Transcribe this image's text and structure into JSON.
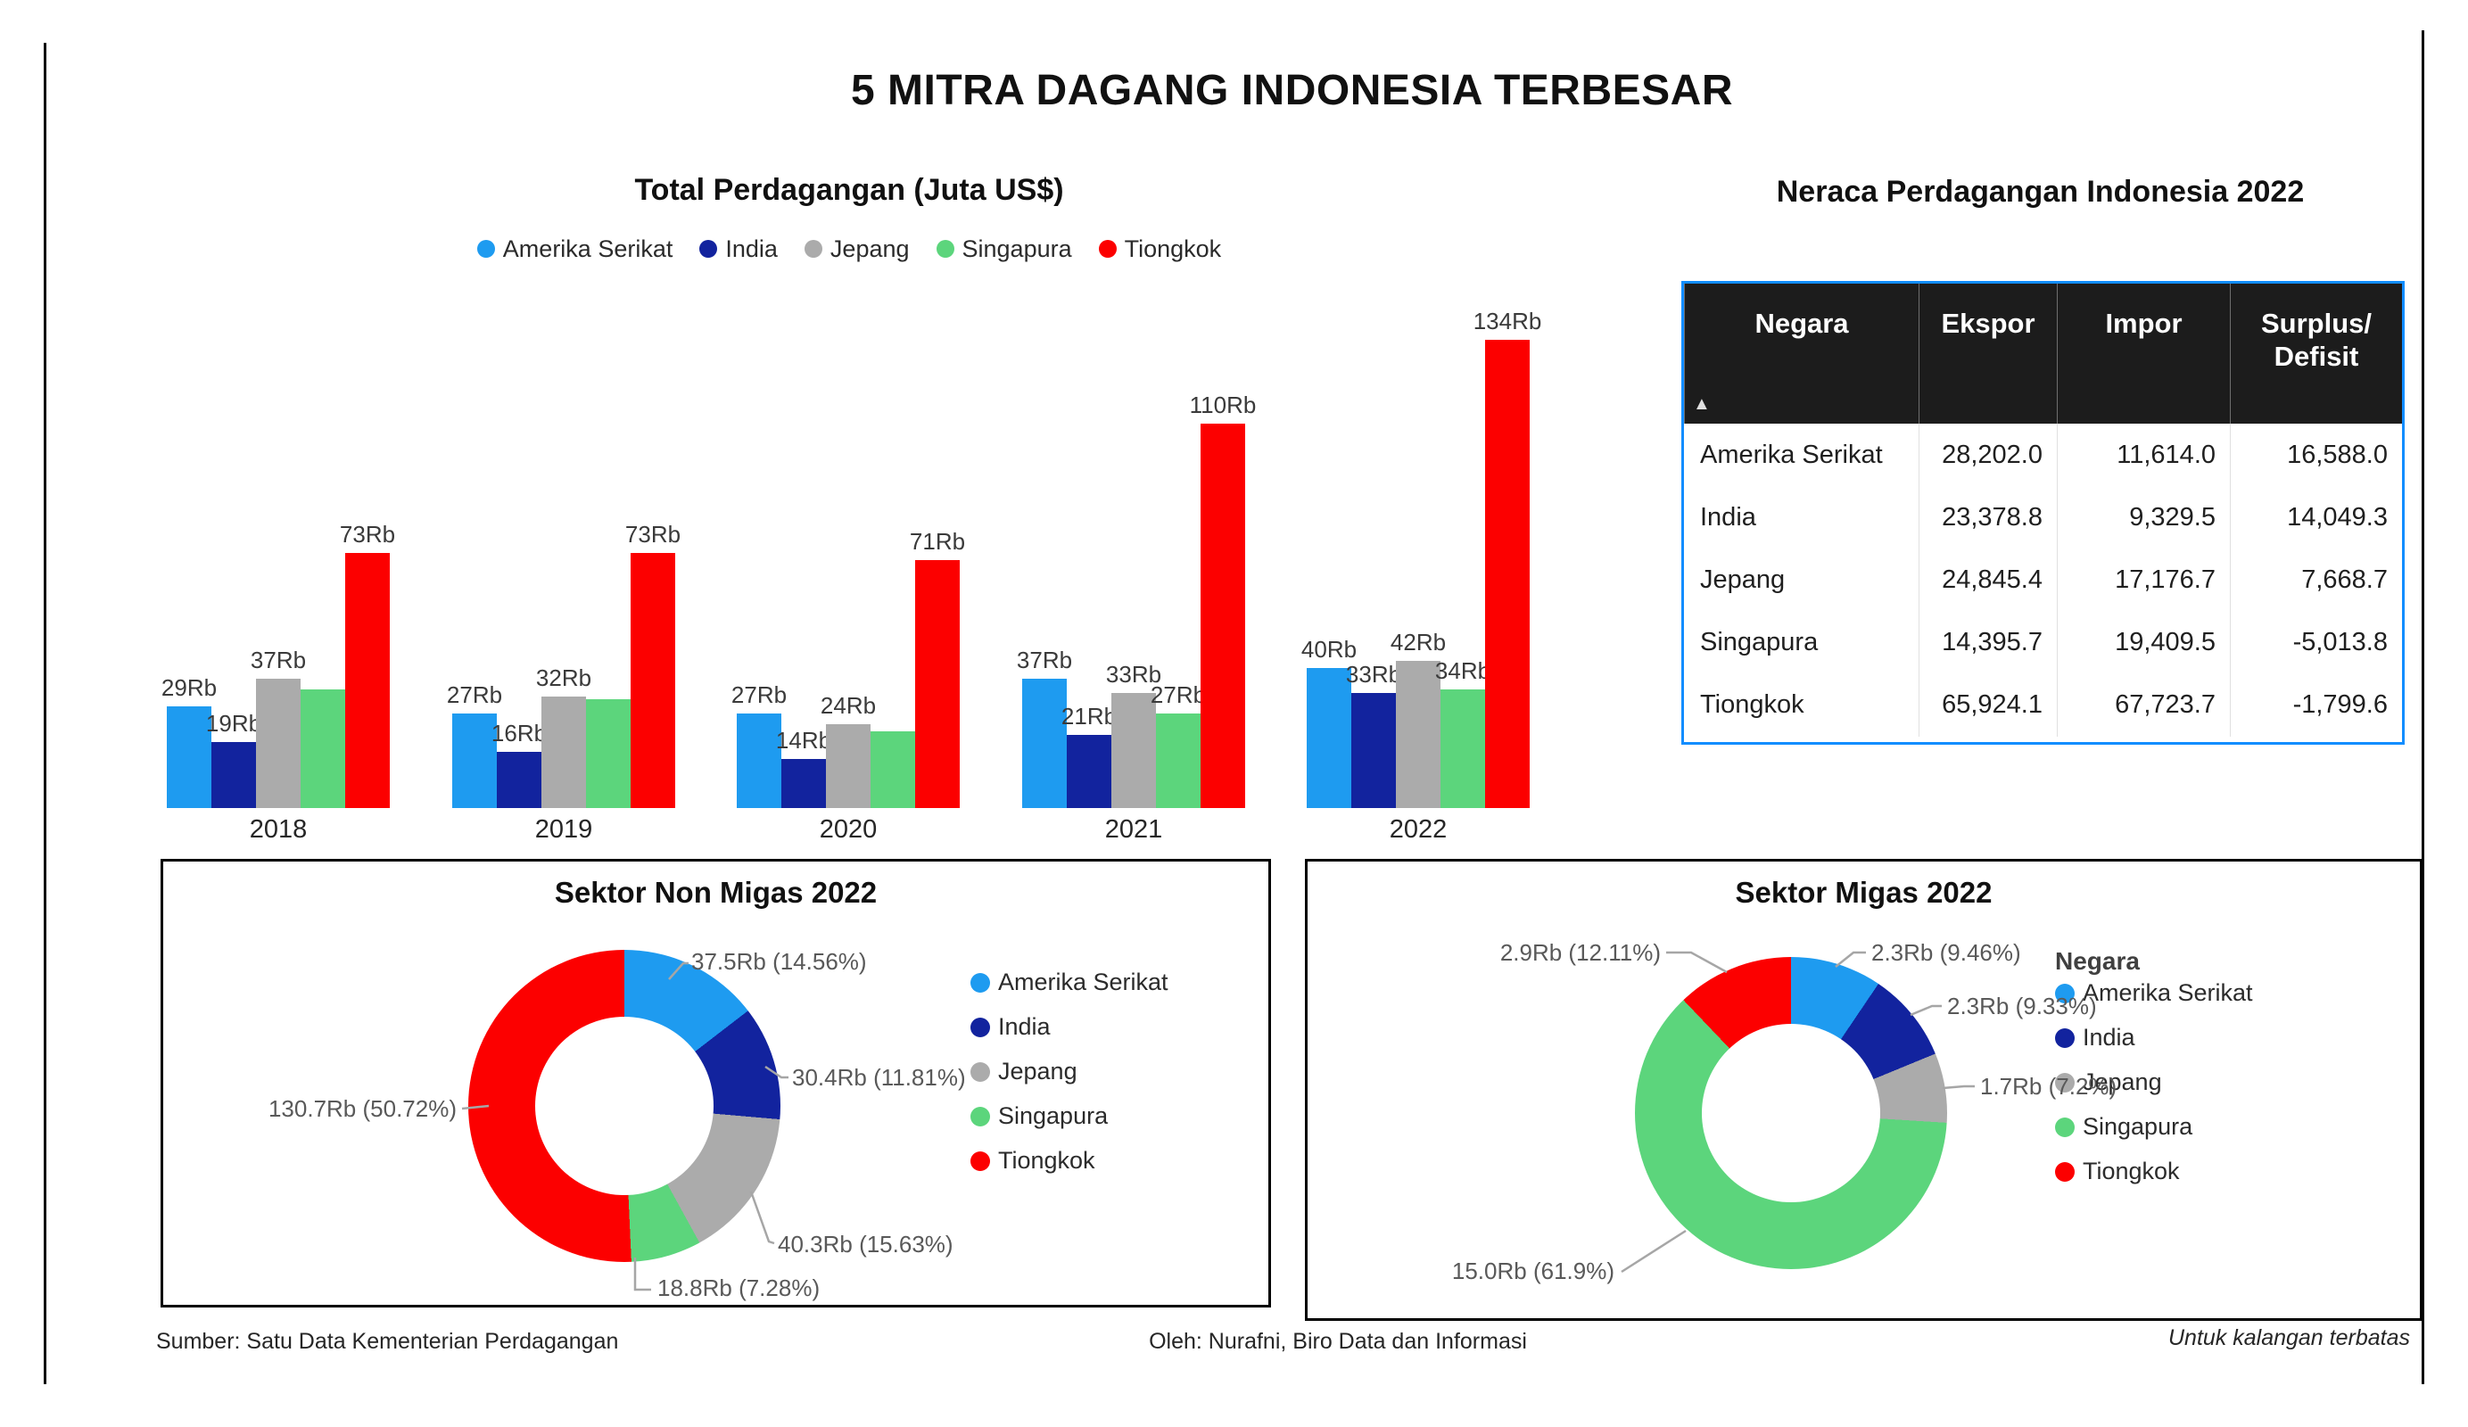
{
  "page": {
    "title": "5 MITRA DAGANG INDONESIA TERBESAR",
    "footer": {
      "source": "Sumber: Satu Data Kementerian Perdagangan",
      "author": "Oleh: Nurafni, Biro Data dan Informasi",
      "note": "Untuk kalangan terbatas"
    }
  },
  "series": [
    "Amerika Serikat",
    "India",
    "Jepang",
    "Singapura",
    "Tiongkok"
  ],
  "series_colors": [
    "#1E9BF0",
    "#12239E",
    "#ABABAB",
    "#5CD57C",
    "#FC0000"
  ],
  "legend_title": "Negara",
  "chart_data": [
    {
      "id": "total_perdagangan",
      "type": "bar",
      "title": "Total Perdagangan (Juta US$)",
      "categories": [
        "2018",
        "2019",
        "2020",
        "2021",
        "2022"
      ],
      "value_unit": "Rb",
      "legend_position": "top",
      "series": [
        {
          "name": "Amerika Serikat",
          "values": [
            29,
            27,
            27,
            37,
            40
          ],
          "labels": [
            "29Rb",
            "27Rb",
            "27Rb",
            "37Rb",
            "40Rb"
          ]
        },
        {
          "name": "India",
          "values": [
            19,
            16,
            14,
            21,
            33
          ],
          "labels": [
            "19Rb",
            "16Rb",
            "14Rb",
            "21Rb",
            "33Rb"
          ]
        },
        {
          "name": "Jepang",
          "values": [
            37,
            32,
            24,
            33,
            42
          ],
          "labels": [
            "37Rb",
            "32Rb",
            "24Rb",
            "33Rb",
            "42Rb"
          ]
        },
        {
          "name": "Singapura",
          "values": [
            34,
            31,
            22,
            27,
            34
          ],
          "labels": [
            null,
            null,
            null,
            "27Rb",
            "34Rb"
          ]
        },
        {
          "name": "Tiongkok",
          "values": [
            73,
            73,
            71,
            110,
            134
          ],
          "labels": [
            "73Rb",
            "73Rb",
            "71Rb",
            "110Rb",
            "134Rb"
          ]
        }
      ]
    },
    {
      "id": "sektor_non_migas",
      "type": "pie",
      "title": "Sektor Non Migas 2022",
      "legend_position": "right",
      "slices": [
        {
          "name": "Amerika Serikat",
          "value": 37.5,
          "pct": 14.56,
          "label": "37.5Rb (14.56%)"
        },
        {
          "name": "India",
          "value": 30.4,
          "pct": 11.81,
          "label": "30.4Rb (11.81%)"
        },
        {
          "name": "Jepang",
          "value": 40.3,
          "pct": 15.63,
          "label": "40.3Rb (15.63%)"
        },
        {
          "name": "Singapura",
          "value": 18.8,
          "pct": 7.28,
          "label": "18.8Rb (7.28%)"
        },
        {
          "name": "Tiongkok",
          "value": 130.7,
          "pct": 50.72,
          "label": "130.7Rb (50.72%)"
        }
      ]
    },
    {
      "id": "sektor_migas",
      "type": "pie",
      "title": "Sektor Migas 2022",
      "legend_position": "right",
      "legend_title": "Negara",
      "slices": [
        {
          "name": "Amerika Serikat",
          "value": 2.3,
          "pct": 9.46,
          "label": "2.3Rb (9.46%)"
        },
        {
          "name": "India",
          "value": 2.3,
          "pct": 9.33,
          "label": "2.3Rb (9.33%)"
        },
        {
          "name": "Jepang",
          "value": 1.7,
          "pct": 7.2,
          "label": "1.7Rb (7.2%)"
        },
        {
          "name": "Singapura",
          "value": 15.0,
          "pct": 61.9,
          "label": "15.0Rb (61.9%)"
        },
        {
          "name": "Tiongkok",
          "value": 2.9,
          "pct": 12.11,
          "label": "2.9Rb (12.11%)"
        }
      ]
    }
  ],
  "table": {
    "title": "Neraca Perdagangan Indonesia 2022",
    "columns": [
      "Negara",
      "Ekspor",
      "Impor",
      "Surplus/Defisit"
    ],
    "sort_indicator": "▲",
    "rows": [
      [
        "Amerika Serikat",
        "28,202.0",
        "11,614.0",
        "16,588.0"
      ],
      [
        "India",
        "23,378.8",
        "9,329.5",
        "14,049.3"
      ],
      [
        "Jepang",
        "24,845.4",
        "17,176.7",
        "7,668.7"
      ],
      [
        "Singapura",
        "14,395.7",
        "19,409.5",
        "-5,013.8"
      ],
      [
        "Tiongkok",
        "65,924.1",
        "67,723.7",
        "-1,799.6"
      ]
    ]
  }
}
